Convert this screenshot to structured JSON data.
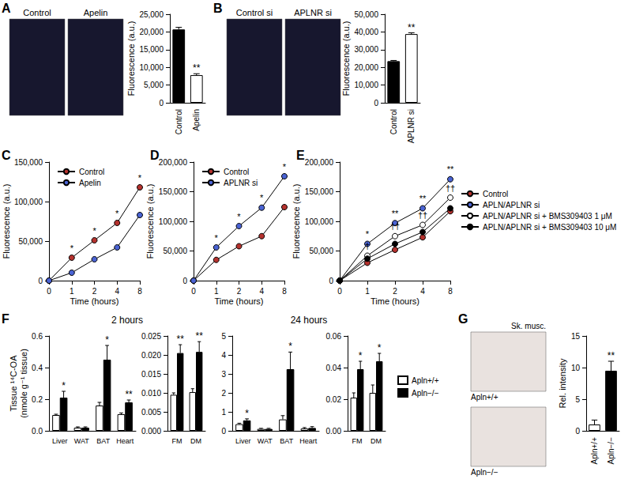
{
  "chart_data": [
    {
      "panel": "A",
      "type": "bar",
      "images": [
        "Control",
        "Apelin"
      ],
      "categories": [
        "Control",
        "Apelin"
      ],
      "values": [
        20700,
        7800
      ],
      "errors": [
        600,
        400
      ],
      "colors": [
        "#000000",
        "#ffffff"
      ],
      "annotations": [
        null,
        "**"
      ],
      "ylabel": "Fluorescence (a.u.)",
      "ylim": [
        0,
        25000
      ],
      "yticks": [
        0,
        {
          "value": 5000,
          "label": "5,000"
        },
        {
          "value": 10000,
          "label": "10,000"
        },
        {
          "value": 15000,
          "label": "15,000"
        },
        {
          "value": 20000,
          "label": "20,000"
        },
        {
          "value": 25000,
          "label": "25,000"
        }
      ]
    },
    {
      "panel": "B",
      "type": "bar",
      "images": [
        "Control si",
        "APLNR si"
      ],
      "categories": [
        "Control",
        "APLNR si"
      ],
      "values": [
        23500,
        38800
      ],
      "errors": [
        400,
        700
      ],
      "colors": [
        "#000000",
        "#ffffff"
      ],
      "annotations": [
        null,
        "**"
      ],
      "ylabel": "Fluorescence (a.u.)",
      "ylim": [
        0,
        50000
      ],
      "yticks": [
        0,
        {
          "value": 10000,
          "label": "10,000"
        },
        {
          "value": 20000,
          "label": "20,000"
        },
        {
          "value": 30000,
          "label": "30,000"
        },
        {
          "value": 40000,
          "label": "40,000"
        },
        {
          "value": 50000,
          "label": "50,000"
        }
      ]
    },
    {
      "panel": "C",
      "type": "line",
      "legend": "upper left",
      "categories": [
        "0",
        "1",
        "2",
        "4",
        "8"
      ],
      "xlabel": "Time (hours)",
      "ylabel": "Fluorescence (a.u.)",
      "ylim": [
        0,
        150000
      ],
      "yticks": [
        0,
        {
          "value": 50000,
          "label": "50,000"
        },
        {
          "value": 100000,
          "label": "100,000"
        },
        {
          "value": 150000,
          "label": "150,000"
        }
      ],
      "series": [
        {
          "name": "Control",
          "color": "#b5322e",
          "marker": "circle",
          "values": [
            0,
            29000,
            51000,
            73000,
            118000
          ],
          "annotations": [
            null,
            "*",
            "*",
            "*",
            "*"
          ]
        },
        {
          "name": "Apelin",
          "color": "#4a63d3",
          "marker": "circle",
          "values": [
            0,
            10000,
            27000,
            42000,
            83000
          ]
        }
      ]
    },
    {
      "panel": "D",
      "type": "line",
      "legend": "upper left",
      "categories": [
        "0",
        "1",
        "2",
        "4",
        "8"
      ],
      "xlabel": "Time (hours)",
      "ylabel": "Fluorescence (a.u.)",
      "ylim": [
        0,
        200000
      ],
      "yticks": [
        0,
        {
          "value": 50000,
          "label": "50,000"
        },
        {
          "value": 100000,
          "label": "100,000"
        },
        {
          "value": 150000,
          "label": "150,000"
        },
        {
          "value": 200000,
          "label": "200,000"
        }
      ],
      "series": [
        {
          "name": "Control",
          "color": "#b5322e",
          "marker": "circle",
          "values": [
            0,
            35000,
            58000,
            75000,
            124000
          ]
        },
        {
          "name": "APLNR si",
          "color": "#4a63d3",
          "marker": "circle",
          "values": [
            0,
            56000,
            92000,
            123000,
            176000
          ],
          "annotations": [
            null,
            "*",
            "*",
            "*",
            "*"
          ]
        }
      ]
    },
    {
      "panel": "E",
      "type": "line",
      "legend": "right",
      "categories": [
        "0",
        "1",
        "2",
        "4",
        "8"
      ],
      "xlabel": "Time (hours)",
      "ylabel": "Fluorescence (a.u.)",
      "ylim": [
        0,
        200000
      ],
      "yticks": [
        0,
        {
          "value": 50000,
          "label": "50,000"
        },
        {
          "value": 100000,
          "label": "100,000"
        },
        {
          "value": 150000,
          "label": "150,000"
        },
        {
          "value": 200000,
          "label": "200,000"
        }
      ],
      "series": [
        {
          "name": "Control",
          "color": "#b5322e",
          "marker": "circle",
          "values": [
            0,
            30000,
            52000,
            73000,
            117000
          ]
        },
        {
          "name": "APLN/APLNR si",
          "color": "#4a63d3",
          "marker": "circle",
          "values": [
            0,
            62000,
            97000,
            122000,
            171000
          ],
          "annotations": [
            null,
            "*",
            "**",
            "**",
            "**"
          ]
        },
        {
          "name": "APLN/APLNR si + BMS309403 1 μM",
          "color": "#ffffff",
          "marker": "circle",
          "values": [
            0,
            42000,
            75000,
            94000,
            140000
          ],
          "annotations": [
            null,
            "†",
            "††",
            "††",
            "††"
          ]
        },
        {
          "name": "APLN/APLNR si + BMS309403 10 μM",
          "color": "#000000",
          "marker": "circle",
          "values": [
            0,
            37000,
            62000,
            82000,
            122000
          ]
        }
      ]
    },
    {
      "panel": "F",
      "type": "bar",
      "legend": "right",
      "ylabel": "Tissue ¹⁴C-OA\n(nmole g⁻¹ tissue)",
      "groups": [
        {
          "title": "2 hours",
          "charts": [
            {
              "categories": [
                "Liver",
                "WAT",
                "BAT",
                "Heart"
              ],
              "ylim": [
                0,
                0.6
              ],
              "yticks": [
                {
                  "value": 0,
                  "label": "0.0"
                },
                0.2,
                0.4,
                0.6
              ],
              "series": [
                {
                  "name": "Apln+/+",
                  "color": "#ffffff",
                  "values": [
                    0.1,
                    0.02,
                    0.16,
                    0.105
                  ],
                  "errors": [
                    0.005,
                    0.005,
                    0.02,
                    0.008
                  ]
                },
                {
                  "name": "Apln−/−",
                  "color": "#000000",
                  "values": [
                    0.21,
                    0.02,
                    0.45,
                    0.18
                  ],
                  "errors": [
                    0.04,
                    0.005,
                    0.09,
                    0.015
                  ],
                  "annotations": [
                    "*",
                    null,
                    "*",
                    "**"
                  ]
                }
              ]
            },
            {
              "categories": [
                "FM",
                "DM"
              ],
              "ylim": [
                0,
                0.025
              ],
              "yticks": [
                {
                  "value": 0,
                  "label": "0.000"
                },
                0.005,
                {
                  "value": 0.01,
                  "label": "0.010"
                },
                0.015,
                {
                  "value": 0.02,
                  "label": "0.020"
                },
                0.025
              ],
              "series": [
                {
                  "name": "Apln+/+",
                  "color": "#ffffff",
                  "values": [
                    0.0095,
                    0.0102
                  ],
                  "errors": [
                    0.0005,
                    0.0009
                  ]
                },
                {
                  "name": "Apln−/−",
                  "color": "#000000",
                  "values": [
                    0.0205,
                    0.0208
                  ],
                  "errors": [
                    0.0022,
                    0.0027
                  ],
                  "annotations": [
                    "**",
                    "**"
                  ]
                }
              ]
            }
          ]
        },
        {
          "title": "24 hours",
          "charts": [
            {
              "categories": [
                "Liver",
                "WAT",
                "BAT",
                "Heart"
              ],
              "ylim": [
                0,
                5
              ],
              "yticks": [
                0,
                1,
                2,
                3,
                4,
                5
              ],
              "series": [
                {
                  "name": "Apln+/+",
                  "color": "#ffffff",
                  "values": [
                    0.35,
                    0.1,
                    0.6,
                    0.12
                  ],
                  "errors": [
                    0.05,
                    0.03,
                    0.2,
                    0.05
                  ]
                },
                {
                  "name": "Apln−/−",
                  "color": "#000000",
                  "values": [
                    0.55,
                    0.1,
                    3.25,
                    0.15
                  ],
                  "errors": [
                    0.08,
                    0.03,
                    0.9,
                    0.07
                  ],
                  "annotations": [
                    "*",
                    null,
                    "*",
                    null
                  ]
                }
              ]
            },
            {
              "categories": [
                "FM",
                "DM"
              ],
              "ylim": [
                0,
                0.06
              ],
              "yticks": [
                {
                  "value": 0,
                  "label": "0.00"
                },
                0.02,
                0.04,
                0.06
              ],
              "series": [
                {
                  "name": "Apln+/+",
                  "color": "#ffffff",
                  "values": [
                    0.021,
                    0.024
                  ],
                  "errors": [
                    0.003,
                    0.005
                  ]
                },
                {
                  "name": "Apln−/−",
                  "color": "#000000",
                  "values": [
                    0.039,
                    0.044
                  ],
                  "errors": [
                    0.005,
                    0.005
                  ],
                  "annotations": [
                    "*",
                    "*"
                  ]
                }
              ]
            }
          ]
        }
      ]
    },
    {
      "panel": "G",
      "type": "bar",
      "images_title": "Sk. musc.",
      "images": [
        "Apln+/+",
        "Apln−/−"
      ],
      "categories": [
        "Apln+/+",
        "Apln−/−"
      ],
      "values": [
        1.0,
        9.5
      ],
      "errors": [
        0.7,
        1.5
      ],
      "colors": [
        "#ffffff",
        "#000000"
      ],
      "annotations": [
        null,
        "**"
      ],
      "ylabel": "Rel. intensity",
      "ylim": [
        0,
        15
      ],
      "yticks": [
        0,
        5,
        10,
        15
      ]
    }
  ]
}
